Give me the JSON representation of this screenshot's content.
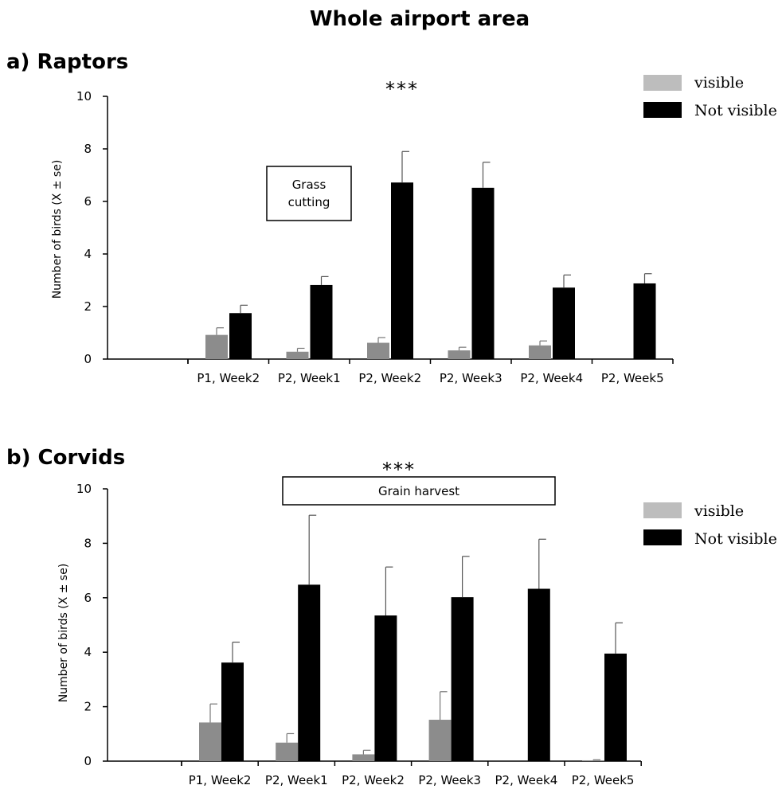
{
  "figure_title": "Whole airport area",
  "chart_data": [
    {
      "type": "bar",
      "panel_label": "a) Raptors",
      "categories": [
        "P1, Week2",
        "P2, Week1",
        "P2, Week2",
        "P2, Week3",
        "P2, Week4",
        "P2, Week5"
      ],
      "series": [
        {
          "name": "visible",
          "color": "#8c8c8c",
          "values": [
            0.92,
            0.28,
            0.62,
            0.33,
            0.52,
            0
          ],
          "errors": [
            0.27,
            0.13,
            0.2,
            0.12,
            0.17,
            0
          ]
        },
        {
          "name": "Not visible",
          "color": "#000000",
          "values": [
            1.75,
            2.82,
            6.72,
            6.52,
            2.72,
            2.88
          ],
          "errors": [
            0.3,
            0.32,
            1.18,
            0.97,
            0.48,
            0.37
          ]
        }
      ],
      "ylabel": "Number of birds (X ± se)",
      "ylim": [
        0,
        10
      ],
      "yticks": [
        0,
        2,
        4,
        6,
        8,
        10
      ],
      "annotations": {
        "box": "Grass cutting",
        "significance": "***"
      },
      "legend_position": "top-right",
      "grid": false
    },
    {
      "type": "bar",
      "panel_label": "b) Corvids",
      "categories": [
        "P1, Week2",
        "P2, Week1",
        "P2, Week2",
        "P2, Week3",
        "P2, Week4",
        "P2, Week5"
      ],
      "series": [
        {
          "name": "visible",
          "color": "#8c8c8c",
          "values": [
            1.42,
            0.68,
            0.25,
            1.52,
            0,
            0.03
          ],
          "errors": [
            0.68,
            0.33,
            0.15,
            1.03,
            0,
            0.02
          ]
        },
        {
          "name": "Not visible",
          "color": "#000000",
          "values": [
            3.62,
            6.48,
            5.35,
            6.02,
            6.33,
            3.95
          ],
          "errors": [
            0.75,
            2.55,
            1.78,
            1.5,
            1.82,
            1.13
          ]
        }
      ],
      "ylabel": "Number of birds (X ± se)",
      "ylim": [
        0,
        10
      ],
      "yticks": [
        0,
        2,
        4,
        6,
        8,
        10
      ],
      "annotations": {
        "box": "Grain harvest",
        "significance": "***"
      },
      "legend_position": "top-right",
      "grid": false
    }
  ]
}
